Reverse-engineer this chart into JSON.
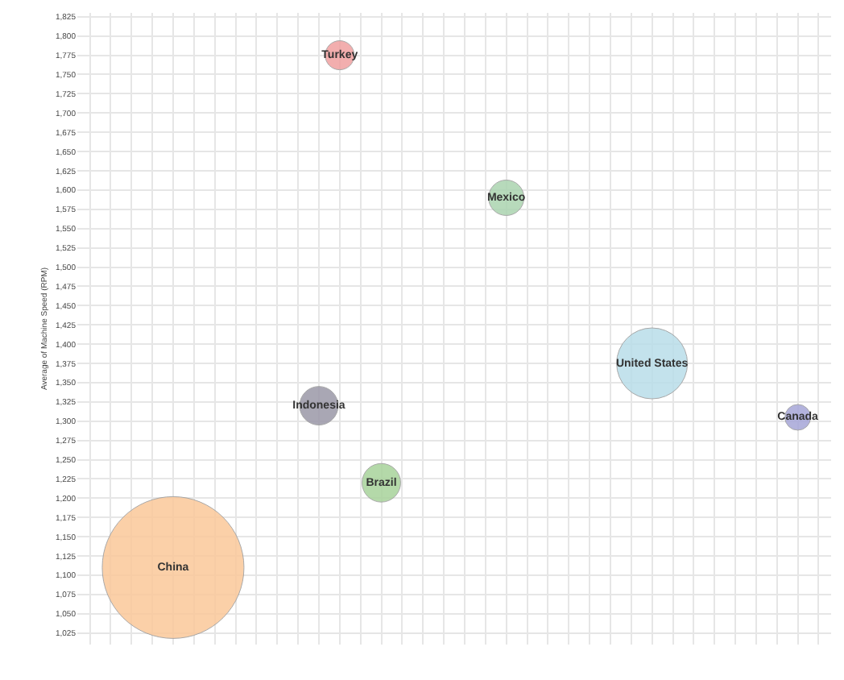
{
  "chart_data": {
    "type": "bubble",
    "ylabel": "Average of Machine Speed (RPM)",
    "categories": [
      null,
      null,
      null,
      null,
      null,
      null,
      null,
      null,
      null,
      null,
      null,
      null,
      null,
      null,
      null,
      null,
      null,
      null,
      null,
      null,
      null,
      null,
      null,
      null,
      null,
      null,
      null,
      null,
      null,
      null,
      null,
      null,
      null,
      null,
      null,
      null
    ],
    "series": [
      {
        "name": "China",
        "color": "#fbc89a",
        "values": [
          null,
          null,
          null,
          null,
          1110,
          null,
          null,
          null,
          null,
          null,
          null,
          null,
          null,
          null,
          null,
          null,
          null,
          null,
          null,
          null,
          null,
          null,
          null,
          null,
          null,
          null,
          null,
          null,
          null,
          null,
          null,
          null,
          null,
          null,
          null,
          null
        ],
        "sizes": [
          null,
          null,
          null,
          null,
          1,
          null,
          null,
          null,
          null,
          null,
          null,
          null,
          null,
          null,
          null,
          null,
          null,
          null,
          null,
          null,
          null,
          null,
          null,
          null,
          null,
          null,
          null,
          null,
          null,
          null,
          null,
          null,
          null,
          null,
          null,
          null
        ]
      },
      {
        "name": "Indonesia",
        "color": "#9b98a8",
        "values": [
          null,
          null,
          null,
          null,
          null,
          null,
          null,
          null,
          null,
          null,
          null,
          1320,
          null,
          null,
          null,
          null,
          null,
          null,
          null,
          null,
          null,
          null,
          null,
          null,
          null,
          null,
          null,
          null,
          null,
          null,
          null,
          null,
          null,
          null,
          null,
          null
        ],
        "sizes": [
          null,
          null,
          null,
          null,
          null,
          null,
          null,
          null,
          null,
          null,
          null,
          0.074,
          null,
          null,
          null,
          null,
          null,
          null,
          null,
          null,
          null,
          null,
          null,
          null,
          null,
          null,
          null,
          null,
          null,
          null,
          null,
          null,
          null,
          null,
          null,
          null
        ]
      },
      {
        "name": "Turkey",
        "color": "#f0a0a0",
        "values": [
          null,
          null,
          null,
          null,
          null,
          null,
          null,
          null,
          null,
          null,
          null,
          null,
          1775,
          null,
          null,
          null,
          null,
          null,
          null,
          null,
          null,
          null,
          null,
          null,
          null,
          null,
          null,
          null,
          null,
          null,
          null,
          null,
          null,
          null,
          null,
          null
        ],
        "sizes": [
          null,
          null,
          null,
          null,
          null,
          null,
          null,
          null,
          null,
          null,
          null,
          null,
          0.042,
          null,
          null,
          null,
          null,
          null,
          null,
          null,
          null,
          null,
          null,
          null,
          null,
          null,
          null,
          null,
          null,
          null,
          null,
          null,
          null,
          null,
          null,
          null
        ]
      },
      {
        "name": "Brazil",
        "color": "#a8d39b",
        "values": [
          null,
          null,
          null,
          null,
          null,
          null,
          null,
          null,
          null,
          null,
          null,
          null,
          null,
          null,
          1220,
          null,
          null,
          null,
          null,
          null,
          null,
          null,
          null,
          null,
          null,
          null,
          null,
          null,
          null,
          null,
          null,
          null,
          null,
          null,
          null,
          null
        ],
        "sizes": [
          null,
          null,
          null,
          null,
          null,
          null,
          null,
          null,
          null,
          null,
          null,
          null,
          null,
          null,
          0.074,
          null,
          null,
          null,
          null,
          null,
          null,
          null,
          null,
          null,
          null,
          null,
          null,
          null,
          null,
          null,
          null,
          null,
          null,
          null,
          null,
          null
        ]
      },
      {
        "name": "Mexico",
        "color": "#abd4b0",
        "values": [
          null,
          null,
          null,
          null,
          null,
          null,
          null,
          null,
          null,
          null,
          null,
          null,
          null,
          null,
          null,
          null,
          null,
          null,
          null,
          null,
          1590,
          null,
          null,
          null,
          null,
          null,
          null,
          null,
          null,
          null,
          null,
          null,
          null,
          null,
          null,
          null
        ],
        "sizes": [
          null,
          null,
          null,
          null,
          null,
          null,
          null,
          null,
          null,
          null,
          null,
          null,
          null,
          null,
          null,
          null,
          null,
          null,
          null,
          null,
          0.0625,
          null,
          null,
          null,
          null,
          null,
          null,
          null,
          null,
          null,
          null,
          null,
          null,
          null,
          null,
          null
        ]
      },
      {
        "name": "United States",
        "color": "#b9dde9",
        "values": [
          null,
          null,
          null,
          null,
          null,
          null,
          null,
          null,
          null,
          null,
          null,
          null,
          null,
          null,
          null,
          null,
          null,
          null,
          null,
          null,
          null,
          null,
          null,
          null,
          null,
          null,
          null,
          1375,
          null,
          null,
          null,
          null,
          null,
          null,
          null,
          null
        ],
        "sizes": [
          null,
          null,
          null,
          null,
          null,
          null,
          null,
          null,
          null,
          null,
          null,
          null,
          null,
          null,
          null,
          null,
          null,
          null,
          null,
          null,
          null,
          null,
          null,
          null,
          null,
          null,
          null,
          0.25,
          null,
          null,
          null,
          null,
          null,
          null,
          null,
          null
        ]
      },
      {
        "name": "Canada",
        "color": "#a6a6d8",
        "values": [
          null,
          null,
          null,
          null,
          null,
          null,
          null,
          null,
          null,
          null,
          null,
          null,
          null,
          null,
          null,
          null,
          null,
          null,
          null,
          null,
          null,
          null,
          null,
          null,
          null,
          null,
          null,
          null,
          null,
          null,
          null,
          null,
          null,
          null,
          1305,
          null
        ],
        "sizes": [
          null,
          null,
          null,
          null,
          null,
          null,
          null,
          null,
          null,
          null,
          null,
          null,
          null,
          null,
          null,
          null,
          null,
          null,
          null,
          null,
          null,
          null,
          null,
          null,
          null,
          null,
          null,
          null,
          null,
          null,
          null,
          null,
          null,
          null,
          0.033,
          null
        ]
      }
    ],
    "ylim": [
      1010,
      1830
    ],
    "yticks": [
      {
        "value": 1025,
        "label": "1,025"
      },
      {
        "value": 1050,
        "label": "1,050"
      },
      {
        "value": 1075,
        "label": "1,075"
      },
      {
        "value": 1100,
        "label": "1,100"
      },
      {
        "value": 1125,
        "label": "1,125"
      },
      {
        "value": 1150,
        "label": "1,150"
      },
      {
        "value": 1175,
        "label": "1,175"
      },
      {
        "value": 1200,
        "label": "1,200"
      },
      {
        "value": 1225,
        "label": "1,225"
      },
      {
        "value": 1250,
        "label": "1,250"
      },
      {
        "value": 1275,
        "label": "1,275"
      },
      {
        "value": 1300,
        "label": "1,300"
      },
      {
        "value": 1325,
        "label": "1,325"
      },
      {
        "value": 1350,
        "label": "1,350"
      },
      {
        "value": 1375,
        "label": "1,375"
      },
      {
        "value": 1400,
        "label": "1,400"
      },
      {
        "value": 1425,
        "label": "1,425"
      },
      {
        "value": 1450,
        "label": "1,450"
      },
      {
        "value": 1475,
        "label": "1,475"
      },
      {
        "value": 1500,
        "label": "1,500"
      },
      {
        "value": 1525,
        "label": "1,525"
      },
      {
        "value": 1550,
        "label": "1,550"
      },
      {
        "value": 1575,
        "label": "1,575"
      },
      {
        "value": 1600,
        "label": "1,600"
      },
      {
        "value": 1625,
        "label": "1,625"
      },
      {
        "value": 1650,
        "label": "1,650"
      },
      {
        "value": 1675,
        "label": "1,675"
      },
      {
        "value": 1700,
        "label": "1,700"
      },
      {
        "value": 1725,
        "label": "1,725"
      },
      {
        "value": 1750,
        "label": "1,750"
      },
      {
        "value": 1775,
        "label": "1,775"
      },
      {
        "value": 1800,
        "label": "1,800"
      },
      {
        "value": 1825,
        "label": "1,825"
      }
    ],
    "grid": true,
    "legend": false,
    "tick_labels": "y"
  }
}
